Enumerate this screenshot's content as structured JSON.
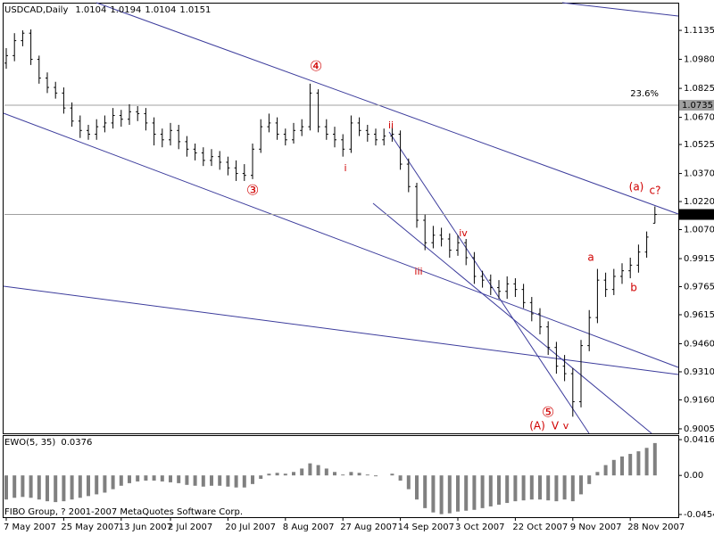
{
  "chart_data": {
    "type": "ohlc",
    "symbol": "USDCAD,Daily",
    "bar_color": "#000000",
    "grid": false,
    "categories": [
      "7 May 2007",
      null,
      null,
      null,
      null,
      null,
      null,
      "25 May 2007",
      null,
      null,
      null,
      null,
      null,
      null,
      "13 Jun 2007",
      null,
      null,
      null,
      null,
      null,
      "2 Jul 2007",
      null,
      null,
      null,
      null,
      null,
      null,
      "20 Jul 2007",
      null,
      null,
      null,
      null,
      null,
      null,
      "8 Aug 2007",
      null,
      null,
      null,
      null,
      null,
      null,
      "27 Aug 2007",
      null,
      null,
      null,
      null,
      null,
      null,
      "14 Sep 2007",
      null,
      null,
      null,
      null,
      null,
      null,
      "3 Oct 2007",
      null,
      null,
      null,
      null,
      null,
      null,
      "22 Oct 2007",
      null,
      null,
      null,
      null,
      null,
      null,
      "9 Nov 2007",
      null,
      null,
      null,
      null,
      null,
      null,
      "28 Nov 2007",
      null,
      null,
      null
    ],
    "open": [
      1.096,
      1.1,
      1.108,
      1.112,
      1.098,
      1.088,
      1.083,
      1.08,
      1.072,
      1.065,
      1.06,
      1.058,
      1.062,
      1.064,
      1.068,
      1.066,
      1.07,
      1.069,
      1.064,
      1.058,
      1.055,
      1.06,
      1.054,
      1.05,
      1.048,
      1.044,
      1.046,
      1.043,
      1.04,
      1.037,
      1.036,
      1.05,
      1.062,
      1.064,
      1.058,
      1.055,
      1.06,
      1.062,
      1.08,
      1.062,
      1.058,
      1.055,
      1.05,
      1.064,
      1.06,
      1.058,
      1.055,
      1.057,
      1.058,
      1.042,
      1.03,
      1.012,
      1.0,
      1.004,
      1.002,
      0.996,
      1.0,
      0.992,
      0.982,
      0.98,
      0.976,
      0.974,
      0.978,
      0.975,
      0.968,
      0.962,
      0.955,
      0.944,
      0.934,
      0.93,
      0.915,
      0.945,
      0.96,
      0.98,
      0.975,
      0.982,
      0.985,
      0.988,
      0.995,
      1.0104
    ],
    "high": [
      1.104,
      1.112,
      1.1135,
      1.114,
      1.1,
      1.091,
      1.086,
      1.083,
      1.075,
      1.068,
      1.063,
      1.066,
      1.068,
      1.072,
      1.071,
      1.074,
      1.073,
      1.072,
      1.067,
      1.061,
      1.064,
      1.063,
      1.057,
      1.053,
      1.051,
      1.05,
      1.049,
      1.046,
      1.044,
      1.042,
      1.053,
      1.066,
      1.069,
      1.067,
      1.061,
      1.064,
      1.066,
      1.085,
      1.082,
      1.066,
      1.062,
      1.058,
      1.068,
      1.067,
      1.063,
      1.061,
      1.061,
      1.062,
      1.06,
      1.045,
      1.032,
      1.015,
      1.009,
      1.008,
      1.005,
      1.004,
      1.002,
      0.995,
      0.985,
      0.983,
      0.98,
      0.982,
      0.981,
      0.978,
      0.971,
      0.965,
      0.958,
      0.947,
      0.94,
      0.933,
      0.948,
      0.964,
      0.986,
      0.984,
      0.986,
      0.989,
      0.992,
      0.999,
      1.006,
      1.0194
    ],
    "low": [
      1.093,
      1.097,
      1.105,
      1.095,
      1.085,
      1.08,
      1.077,
      1.069,
      1.062,
      1.056,
      1.055,
      1.055,
      1.059,
      1.061,
      1.062,
      1.063,
      1.065,
      1.06,
      1.052,
      1.051,
      1.052,
      1.05,
      1.046,
      1.044,
      1.041,
      1.041,
      1.039,
      1.036,
      1.033,
      1.033,
      1.034,
      1.048,
      1.059,
      1.055,
      1.052,
      1.053,
      1.057,
      1.06,
      1.059,
      1.055,
      1.051,
      1.046,
      1.048,
      1.057,
      1.054,
      1.052,
      1.052,
      1.054,
      1.039,
      1.027,
      1.008,
      0.996,
      0.997,
      0.998,
      0.992,
      0.993,
      0.988,
      0.978,
      0.976,
      0.972,
      0.97,
      0.97,
      0.971,
      0.965,
      0.958,
      0.951,
      0.94,
      0.93,
      0.926,
      0.907,
      0.912,
      0.942,
      0.957,
      0.971,
      0.972,
      0.978,
      0.981,
      0.984,
      0.992,
      1.0104
    ],
    "close": [
      1.1,
      1.108,
      1.112,
      1.098,
      1.088,
      1.083,
      1.08,
      1.072,
      1.065,
      1.06,
      1.058,
      1.062,
      1.064,
      1.068,
      1.066,
      1.07,
      1.069,
      1.064,
      1.058,
      1.055,
      1.06,
      1.054,
      1.05,
      1.048,
      1.044,
      1.046,
      1.043,
      1.04,
      1.037,
      1.036,
      1.05,
      1.062,
      1.064,
      1.058,
      1.055,
      1.06,
      1.062,
      1.08,
      1.062,
      1.058,
      1.055,
      1.05,
      1.064,
      1.06,
      1.058,
      1.055,
      1.057,
      1.058,
      1.042,
      1.03,
      1.012,
      1.0,
      1.004,
      1.002,
      0.996,
      1.0,
      0.992,
      0.982,
      0.98,
      0.976,
      0.974,
      0.978,
      0.975,
      0.968,
      0.962,
      0.955,
      0.944,
      0.934,
      0.93,
      0.915,
      0.945,
      0.96,
      0.98,
      0.975,
      0.982,
      0.985,
      0.988,
      0.995,
      1.003,
      1.0151
    ],
    "ylim": [
      0.8981,
      1.1283
    ],
    "yticks": [
      1.1135,
      {
        "value": 1.098,
        "label": "1.0980"
      },
      1.0825,
      {
        "value": 1.067,
        "label": "1.0670"
      },
      1.0525,
      {
        "value": 1.037,
        "label": "1.0370"
      },
      {
        "value": 1.022,
        "label": "1.0220"
      },
      {
        "value": 1.007,
        "label": "1.0070"
      },
      0.9915,
      0.9765,
      0.9615,
      {
        "value": 0.946,
        "label": "0.9460"
      },
      {
        "value": 0.931,
        "label": "0.9310"
      },
      {
        "value": 0.916,
        "label": "0.9160"
      },
      0.9005
    ],
    "fibo": {
      "price": 1.0735,
      "label": "23.6%",
      "color": "#a0a0a0"
    },
    "annotations": [
      "④",
      "③",
      "⑤",
      "i",
      "ii",
      "iii",
      "iv",
      "(a)",
      "c?",
      "a",
      "b",
      "(A)",
      "V",
      "v"
    ],
    "indicator": {
      "name": "EWO(5, 35)",
      "color": "#808080",
      "values": [
        -0.028,
        -0.026,
        -0.025,
        -0.026,
        -0.028,
        -0.03,
        -0.031,
        -0.03,
        -0.028,
        -0.026,
        -0.024,
        -0.022,
        -0.02,
        -0.016,
        -0.012,
        -0.009,
        -0.007,
        -0.006,
        -0.006,
        -0.007,
        -0.008,
        -0.009,
        -0.011,
        -0.012,
        -0.013,
        -0.012,
        -0.012,
        -0.013,
        -0.014,
        -0.014,
        -0.01,
        -0.004,
        0.002,
        0.003,
        0.002,
        0.004,
        0.008,
        0.014,
        0.012,
        0.008,
        0.004,
        0.001,
        0.004,
        0.003,
        0.001,
        -0.001,
        0.0,
        0.002,
        -0.006,
        -0.016,
        -0.028,
        -0.038,
        -0.043,
        -0.045,
        -0.044,
        -0.042,
        -0.041,
        -0.04,
        -0.038,
        -0.036,
        -0.034,
        -0.032,
        -0.03,
        -0.029,
        -0.028,
        -0.028,
        -0.029,
        -0.03,
        -0.028,
        -0.03,
        -0.022,
        -0.01,
        0.004,
        0.012,
        0.018,
        0.022,
        0.025,
        0.028,
        0.032,
        0.0376
      ],
      "ylim": [
        -0.0485,
        0.0468
      ],
      "yticks": [
        0.0416,
        {
          "value": 0,
          "label": "0.00"
        },
        -0.0454
      ]
    },
    "footer": "FIBO Group, ? 2001-2007 MetaQuotes Software Corp."
  }
}
